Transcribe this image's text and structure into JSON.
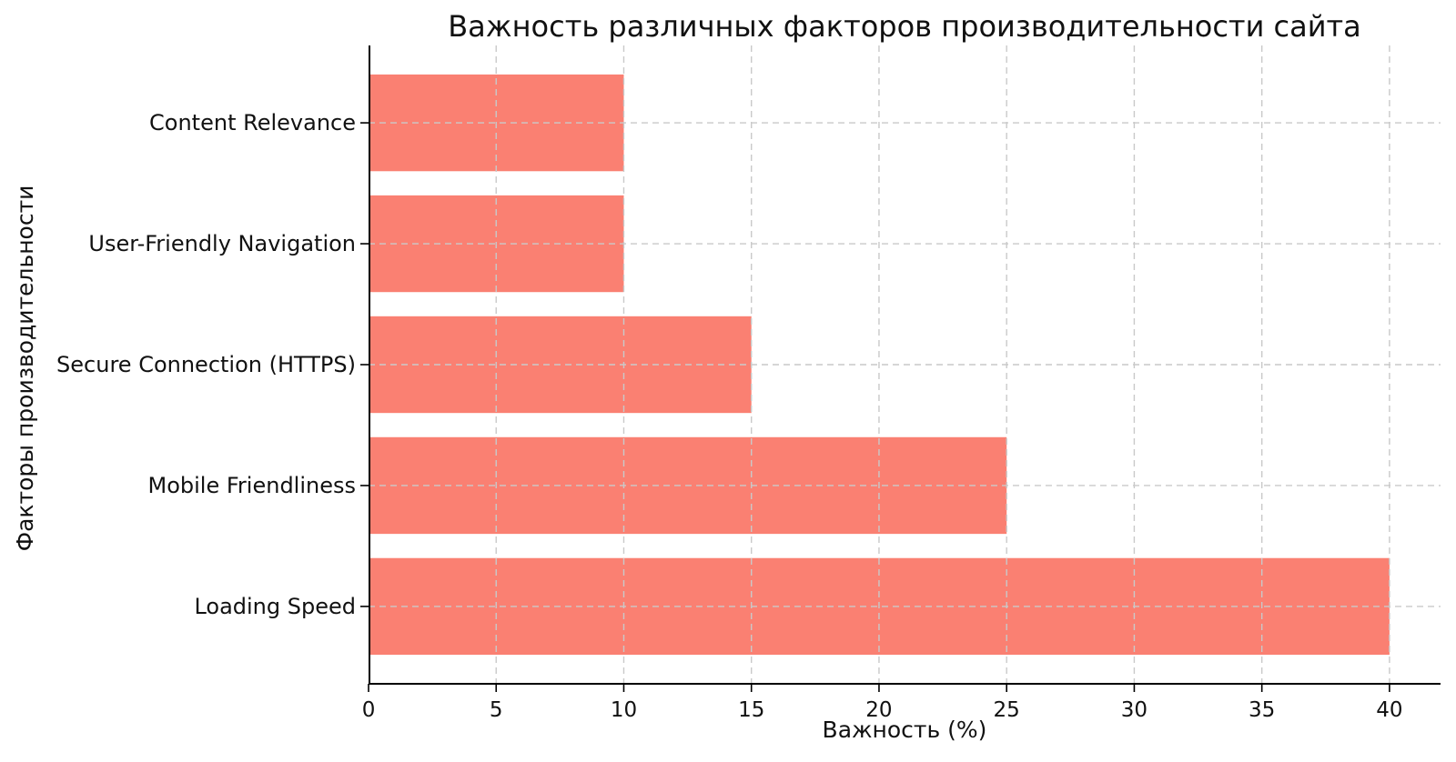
{
  "chart_data": {
    "type": "bar",
    "orientation": "horizontal",
    "title": "Важность различных факторов производительности сайта",
    "xlabel": "Важность (%)",
    "ylabel": "Факторы производительности",
    "categories": [
      "Content Relevance",
      "User-Friendly Navigation",
      "Secure Connection (HTTPS)",
      "Mobile Friendliness",
      "Loading Speed"
    ],
    "values": [
      10,
      10,
      15,
      25,
      40
    ],
    "xlim": [
      0,
      42
    ],
    "xticks": [
      0,
      5,
      10,
      15,
      20,
      25,
      30,
      35,
      40
    ],
    "bar_color": "#FA8072",
    "grid": true,
    "grid_style": "dashed",
    "grid_color": "#c9c9c9",
    "axis_color": "#000000",
    "text_color": "#111111",
    "background_color": "#ffffff",
    "legend": "none"
  }
}
